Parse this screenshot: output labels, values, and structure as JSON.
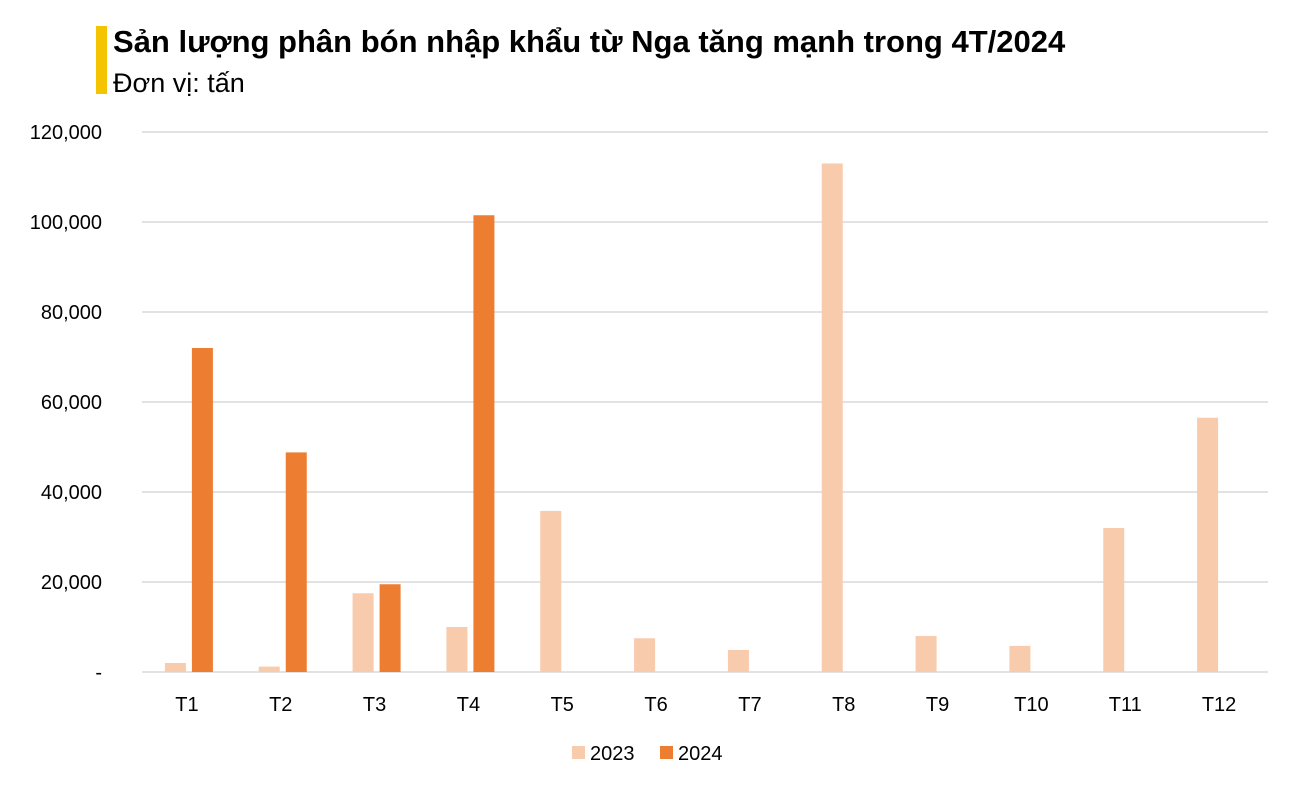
{
  "colors": {
    "series_2023": "#f8cbad",
    "series_2024": "#ed7d31",
    "accent": "#f5c400",
    "grid": "#d9d9d9"
  },
  "chart_data": {
    "type": "bar",
    "title": "Sản lượng phân bón nhập khẩu từ Nga tăng mạnh trong 4T/2024",
    "subtitle": "Đơn vị: tấn",
    "categories": [
      "T1",
      "T2",
      "T3",
      "T4",
      "T5",
      "T6",
      "T7",
      "T8",
      "T9",
      "T10",
      "T11",
      "T12"
    ],
    "series": [
      {
        "name": "2023",
        "values": [
          2000,
          1200,
          17500,
          10000,
          35800,
          7500,
          4900,
          113000,
          8000,
          5800,
          32000,
          56500
        ]
      },
      {
        "name": "2024",
        "values": [
          72000,
          48800,
          19500,
          101500,
          null,
          null,
          null,
          null,
          null,
          null,
          null,
          null
        ]
      }
    ],
    "ylim": [
      0,
      120000
    ],
    "yticks": [
      0,
      20000,
      40000,
      60000,
      80000,
      100000,
      120000
    ],
    "ytick_labels": [
      "-",
      "20,000",
      "40,000",
      "60,000",
      "80,000",
      "100,000",
      "120,000"
    ],
    "grid": true,
    "legend_position": "bottom"
  }
}
